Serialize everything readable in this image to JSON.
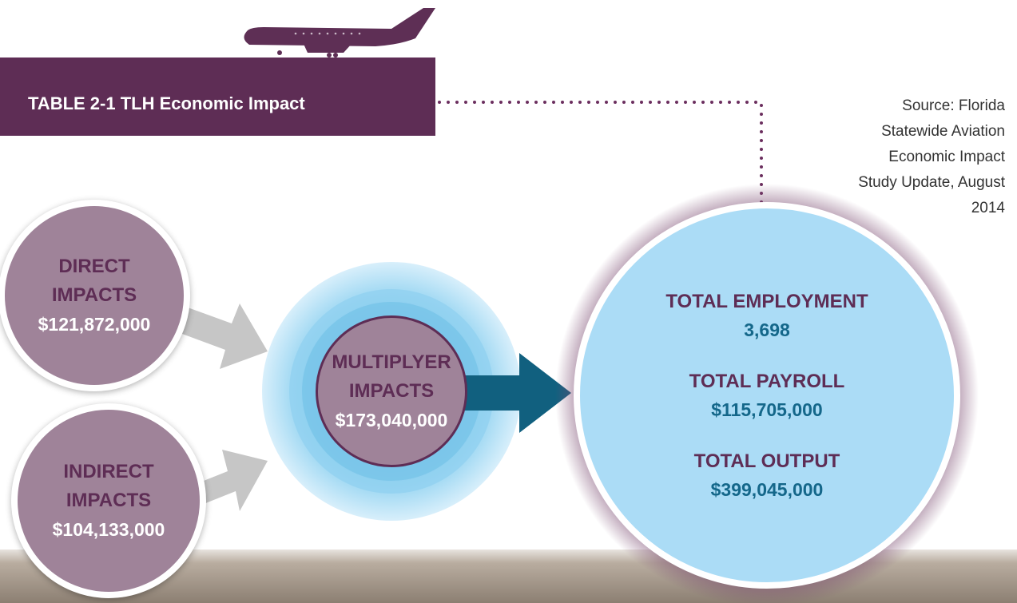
{
  "header": {
    "title": "TABLE 2-1 TLH Economic Impact"
  },
  "source": {
    "lines": [
      "Source: Florida",
      "Statewide Aviation",
      "Economic Impact",
      "Study Update, August",
      "2014"
    ]
  },
  "inputs": [
    {
      "label": "DIRECT IMPACTS",
      "value": "$121,872,000"
    },
    {
      "label": "INDIRECT IMPACTS",
      "value": "$104,133,000"
    }
  ],
  "multiplier": {
    "label": "MULTIPLYER IMPACTS",
    "value": "$173,040,000"
  },
  "totals": [
    {
      "label": "TOTAL EMPLOYMENT",
      "value": "3,698"
    },
    {
      "label": "TOTAL PAYROLL",
      "value": "$115,705,000"
    },
    {
      "label": "TOTAL OUTPUT",
      "value": "$399,045,000"
    }
  ]
}
